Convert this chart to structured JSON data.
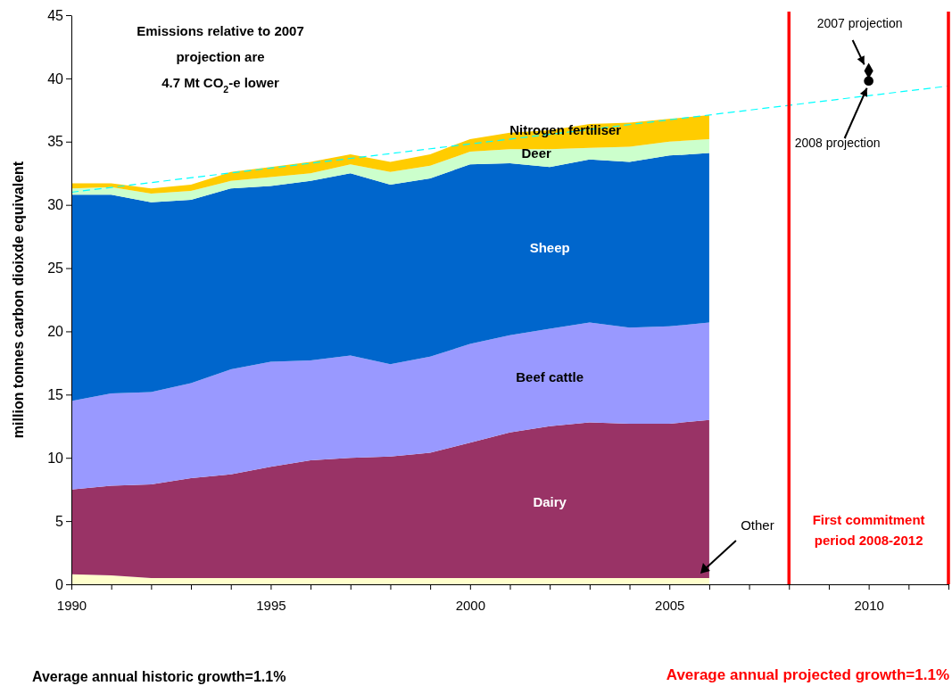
{
  "chart_data": {
    "type": "area",
    "stacked": true,
    "ylabel": "million tonnes carbon dioixde equivalent",
    "x": [
      1990,
      1991,
      1992,
      1993,
      1994,
      1995,
      1996,
      1997,
      1998,
      1999,
      2000,
      2001,
      2002,
      2003,
      2004,
      2005,
      2006
    ],
    "xlim": [
      1990,
      2012
    ],
    "xticks": [
      1990,
      {
        "value": 1991,
        "label": null
      },
      {
        "value": 1992,
        "label": null
      },
      {
        "value": 1993,
        "label": null
      },
      {
        "value": 1994,
        "label": null
      },
      1995,
      {
        "value": 1996,
        "label": null
      },
      {
        "value": 1997,
        "label": null
      },
      {
        "value": 1998,
        "label": null
      },
      {
        "value": 1999,
        "label": null
      },
      2000,
      {
        "value": 2001,
        "label": null
      },
      {
        "value": 2002,
        "label": null
      },
      {
        "value": 2003,
        "label": null
      },
      {
        "value": 2004,
        "label": null
      },
      2005,
      {
        "value": 2006,
        "label": null
      },
      {
        "value": 2007,
        "label": null
      },
      {
        "value": 2008,
        "label": null
      },
      {
        "value": 2009,
        "label": null
      },
      2010,
      {
        "value": 2011,
        "label": null
      },
      {
        "value": 2012,
        "label": null
      }
    ],
    "ylim": [
      0,
      45
    ],
    "yticks": [
      0,
      5,
      10,
      15,
      20,
      25,
      30,
      35,
      40,
      45
    ],
    "grid": false,
    "series": [
      {
        "name": "Other",
        "color": "#ffffcc",
        "values": [
          0.8,
          0.7,
          0.5,
          0.5,
          0.5,
          0.5,
          0.5,
          0.5,
          0.5,
          0.5,
          0.5,
          0.5,
          0.5,
          0.5,
          0.5,
          0.5,
          0.5
        ]
      },
      {
        "name": "Dairy",
        "color": "#993366",
        "values": [
          6.7,
          7.1,
          7.4,
          7.9,
          8.2,
          8.8,
          9.3,
          9.5,
          9.6,
          9.9,
          10.7,
          11.5,
          12.0,
          12.3,
          12.2,
          12.2,
          12.5
        ]
      },
      {
        "name": "Beef cattle",
        "color": "#9999ff",
        "values": [
          7.0,
          7.3,
          7.3,
          7.5,
          8.3,
          8.3,
          7.9,
          8.1,
          7.3,
          7.6,
          7.8,
          7.7,
          7.7,
          7.9,
          7.6,
          7.7,
          7.7
        ]
      },
      {
        "name": "Sheep",
        "color": "#0066cc",
        "values": [
          16.3,
          15.7,
          15.0,
          14.5,
          14.3,
          13.9,
          14.2,
          14.4,
          14.2,
          14.1,
          14.2,
          13.6,
          12.8,
          12.9,
          13.1,
          13.5,
          13.4
        ]
      },
      {
        "name": "Deer",
        "color": "#ccffcc",
        "values": [
          0.5,
          0.6,
          0.7,
          0.7,
          0.6,
          0.7,
          0.6,
          0.7,
          1.0,
          1.0,
          1.0,
          1.1,
          1.4,
          0.9,
          1.2,
          1.1,
          1.1
        ]
      },
      {
        "name": "Nitrogen fertiliser",
        "color": "#ffcc00",
        "values": [
          0.4,
          0.3,
          0.4,
          0.5,
          0.7,
          0.8,
          0.9,
          0.8,
          0.8,
          0.9,
          1.0,
          1.3,
          1.5,
          1.9,
          1.9,
          1.8,
          1.9
        ]
      },
      {
        "type": "line",
        "color": "#00ffff",
        "line_style": "dashed",
        "x": [
          1990,
          2012
        ],
        "values": [
          31.0,
          39.4
        ]
      },
      {
        "type": "scatter",
        "name": "2007 projection",
        "color": "#000000",
        "marker": "diamond",
        "x": [
          2010
        ],
        "values": [
          40.6
        ]
      },
      {
        "type": "scatter",
        "name": "2008 projection",
        "color": "#000000",
        "marker": "circle",
        "x": [
          2010
        ],
        "values": [
          39.8
        ]
      }
    ],
    "ref_lines": [
      {
        "axis": "x",
        "value": 2008,
        "color": "#ff0000"
      },
      {
        "axis": "x",
        "value": 2012,
        "color": "#ff0000"
      }
    ],
    "annotations": [
      "Emissions relative to 2007 projection are 4.7 Mt CO$_{2}$-e lower",
      "First commitment period 2008-2012",
      "Average annual historic growth=1.1%",
      "Average annual projected growth=1.1%"
    ]
  }
}
